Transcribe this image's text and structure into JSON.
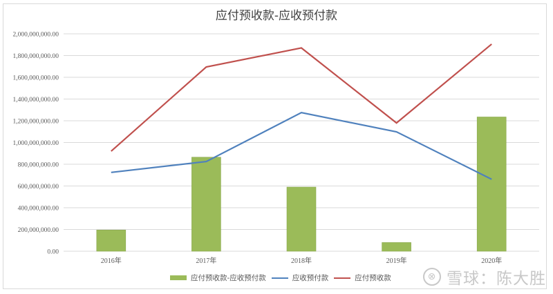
{
  "chart_data": {
    "type": "bar+line",
    "title": "应付预收款-应收预付款",
    "categories": [
      "2016年",
      "2017年",
      "2018年",
      "2019年",
      "2020年"
    ],
    "series": [
      {
        "name": "应付预收款-应收预付款",
        "type": "bar",
        "color": "#9bbb59",
        "values": [
          195000000,
          865000000,
          590000000,
          80000000,
          1235000000
        ]
      },
      {
        "name": "应收预付款",
        "type": "line",
        "color": "#4f81bd",
        "values": [
          725000000,
          825000000,
          1275000000,
          1098000000,
          662000000
        ]
      },
      {
        "name": "应付预收款",
        "type": "line",
        "color": "#c0504d",
        "values": [
          920000000,
          1695000000,
          1870000000,
          1180000000,
          1905000000
        ]
      }
    ],
    "xlabel": "",
    "ylabel": "",
    "ylim": [
      0,
      2000000000
    ],
    "yticks": [
      "0.00",
      "200,000,000.00",
      "400,000,000.00",
      "600,000,000.00",
      "800,000,000.00",
      "1,000,000,000.00",
      "1,200,000,000.00",
      "1,400,000,000.00",
      "1,600,000,000.00",
      "1,800,000,000.00",
      "2,000,000,000.00"
    ],
    "grid": true,
    "legend_position": "bottom"
  },
  "legend": {
    "items": [
      {
        "label": "应付预收款-应收预付款",
        "kind": "bar",
        "color": "#9bbb59"
      },
      {
        "label": "应收预付款",
        "kind": "line",
        "color": "#4f81bd"
      },
      {
        "label": "应付预收款",
        "kind": "line",
        "color": "#c0504d"
      }
    ]
  },
  "watermark": {
    "logo": "xueqiu-logo",
    "text": "雪球：陈大胜"
  }
}
